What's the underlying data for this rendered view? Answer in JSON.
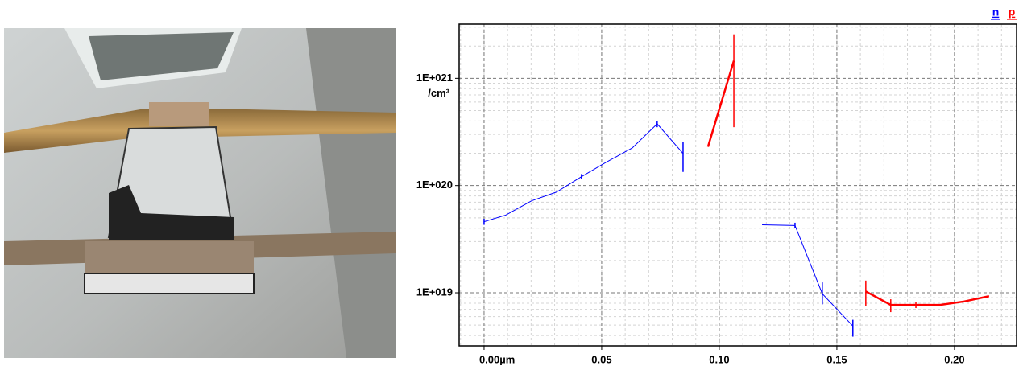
{
  "chart_data": {
    "type": "line",
    "log_y": true,
    "grid": true,
    "minor_grid": true,
    "y_unit": "/cm³",
    "xlim": [
      -0.0106,
      0.2264
    ],
    "xticks": [
      {
        "value": 0,
        "label": "0.00µm"
      },
      0.05,
      {
        "value": 0.1,
        "label": "0.10"
      },
      0.15,
      {
        "value": 0.2,
        "label": "0.20"
      }
    ],
    "ylim": [
      3.2e+18,
      3.2e+21
    ],
    "yticks": [
      {
        "value": 1e+19,
        "label": "1E+019"
      },
      {
        "value": 1e+20,
        "label": "1E+020"
      },
      {
        "value": 1e+21,
        "label": "1E+021"
      }
    ],
    "series": [
      {
        "name": "n",
        "color": "#0000ff",
        "segments": [
          {
            "x": [
              0,
              0.0092,
              0.0202,
              0.0308,
              0.0414,
              0.0517,
              0.063,
              0.0736,
              0.0846
            ],
            "values": [
              4.6e+19,
              5.3e+19,
              7.2e+19,
              8.7e+19,
              1.21e+20,
              1.64e+20,
              2.24e+20,
              3.76e+20,
              1.99e+20
            ],
            "errors": [
              [
                4.3e+19,
                4.9e+19
              ],
              null,
              null,
              null,
              [
                1.15e+20,
                1.28e+20
              ],
              null,
              null,
              [
                3.5e+20,
                4e+20
              ],
              [
                1.34e+20,
                2.57e+20
              ]
            ]
          },
          {
            "x": [
              0.1182,
              0.1322,
              0.1438,
              0.1568
            ],
            "values": [
              4.3e+19,
              4.24e+19,
              9.8e+18,
              4.9e+18
            ],
            "errors": [
              null,
              [
                4e+19,
                4.5e+19
              ],
              [
                7.8e+18,
                1.25e+19
              ],
              [
                3.9e+18,
                5.6e+18
              ]
            ]
          }
        ]
      },
      {
        "name": "p",
        "color": "#ff0000",
        "segments": [
          {
            "x": [
              0.0952,
              0.1062
            ],
            "values": [
              2.3e+20,
              1.46e+21
            ],
            "errors": [
              null,
              [
                3.5e+20,
                2.57e+21
              ]
            ]
          },
          {
            "x": [
              0.1623,
              0.1729,
              0.1836,
              0.1938,
              0.2041,
              0.2147
            ],
            "values": [
              1.03e+19,
              7.7e+18,
              7.7e+18,
              7.7e+18,
              8.3e+18,
              9.3e+18
            ],
            "errors": [
              [
                7.5e+18,
                1.3e+19
              ],
              [
                6.6e+18,
                8.7e+18
              ],
              [
                7.2e+18,
                8.2e+18
              ],
              null,
              null,
              null
            ]
          }
        ]
      }
    ]
  }
}
